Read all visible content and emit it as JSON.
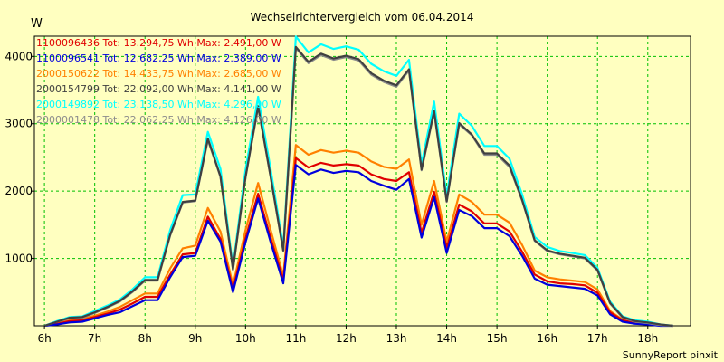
{
  "chart_data": {
    "type": "line",
    "title": "Wechselrichtervergleich vom 06.04.2014",
    "ylabel": "W",
    "footer": "SunnyReport pinxit",
    "xlim": [
      5.8,
      18.85
    ],
    "ylim": [
      0,
      4300
    ],
    "x_ticks": [
      6,
      7,
      8,
      9,
      10,
      11,
      12,
      13,
      14,
      15,
      16,
      17,
      18
    ],
    "x_tick_labels": [
      "6h",
      "7h",
      "8h",
      "9h",
      "10h",
      "11h",
      "12h",
      "13h",
      "14h",
      "15h",
      "16h",
      "17h",
      "18h"
    ],
    "y_ticks": [
      1000,
      2000,
      3000,
      4000
    ],
    "y_tick_labels": [
      "1000",
      "2000",
      "3000",
      "4000"
    ],
    "grid": true,
    "legend_position": "top-left",
    "x": [
      6.0,
      6.25,
      6.5,
      6.75,
      7.0,
      7.25,
      7.5,
      7.75,
      8.0,
      8.25,
      8.5,
      8.75,
      9.0,
      9.25,
      9.5,
      9.75,
      10.0,
      10.25,
      10.5,
      10.75,
      11.0,
      11.25,
      11.5,
      11.75,
      12.0,
      12.25,
      12.5,
      12.75,
      13.0,
      13.25,
      13.5,
      13.75,
      14.0,
      14.25,
      14.5,
      14.75,
      15.0,
      15.25,
      15.5,
      15.75,
      16.0,
      16.25,
      16.5,
      16.75,
      17.0,
      17.25,
      17.5,
      17.75,
      18.0,
      18.25,
      18.5
    ],
    "series": [
      {
        "name": "1100096436",
        "color": "#e00000",
        "legend": "1100096436 Tot: 13.294,75 Wh Max: 2.491,00 W",
        "values": [
          0,
          30,
          70,
          80,
          130,
          180,
          240,
          330,
          430,
          430,
          760,
          1060,
          1080,
          1620,
          1290,
          540,
          1300,
          1960,
          1300,
          680,
          2491,
          2350,
          2420,
          2380,
          2400,
          2380,
          2250,
          2180,
          2150,
          2280,
          1380,
          1990,
          1150,
          1800,
          1700,
          1520,
          1520,
          1400,
          1100,
          760,
          660,
          630,
          620,
          600,
          490,
          200,
          80,
          40,
          30,
          10,
          0
        ]
      },
      {
        "name": "1100096541",
        "color": "#0000dd",
        "legend": "1100096541 Tot: 12.682,25 Wh Max: 2.389,00 W",
        "values": [
          0,
          20,
          50,
          60,
          110,
          160,
          200,
          290,
          380,
          380,
          720,
          1020,
          1040,
          1560,
          1250,
          500,
          1240,
          1890,
          1240,
          630,
          2389,
          2250,
          2320,
          2270,
          2300,
          2280,
          2150,
          2080,
          2020,
          2180,
          1310,
          1910,
          1080,
          1720,
          1630,
          1450,
          1450,
          1330,
          1040,
          700,
          610,
          590,
          570,
          550,
          450,
          170,
          60,
          30,
          20,
          0,
          0
        ]
      },
      {
        "name": "2000150622",
        "color": "#ff8000",
        "legend": "2000150622 Tot: 14.433,75 Wh Max: 2.685,00 W",
        "values": [
          0,
          40,
          80,
          100,
          150,
          210,
          280,
          380,
          480,
          480,
          850,
          1150,
          1190,
          1750,
          1400,
          600,
          1420,
          2120,
          1420,
          740,
          2685,
          2540,
          2610,
          2570,
          2600,
          2570,
          2440,
          2360,
          2330,
          2470,
          1500,
          2150,
          1250,
          1950,
          1840,
          1650,
          1650,
          1530,
          1200,
          820,
          720,
          690,
          670,
          650,
          540,
          220,
          90,
          50,
          40,
          10,
          0
        ]
      },
      {
        "name": "2000154799",
        "color": "#404040",
        "legend": "2000154799 Tot: 22.092,00 Wh Max: 4.141,00 W",
        "values": [
          0,
          60,
          120,
          130,
          200,
          280,
          370,
          510,
          680,
          680,
          1350,
          1840,
          1860,
          2780,
          2220,
          840,
          2210,
          3260,
          2210,
          1120,
          4141,
          3920,
          4040,
          3970,
          4010,
          3960,
          3750,
          3640,
          3570,
          3810,
          2320,
          3190,
          1850,
          3010,
          2840,
          2560,
          2560,
          2380,
          1870,
          1270,
          1120,
          1070,
          1040,
          1010,
          830,
          340,
          130,
          70,
          50,
          20,
          0
        ]
      },
      {
        "name": "2000149892",
        "color": "#00ffff",
        "legend": "2000149892 Tot: 23.138,50 Wh Max: 4.296,00 W",
        "values": [
          0,
          70,
          130,
          140,
          220,
          300,
          390,
          540,
          720,
          720,
          1420,
          1940,
          1950,
          2880,
          2330,
          880,
          2320,
          3400,
          2320,
          1170,
          4296,
          4060,
          4180,
          4110,
          4150,
          4100,
          3890,
          3780,
          3710,
          3950,
          2400,
          3330,
          1930,
          3150,
          2970,
          2670,
          2670,
          2480,
          1950,
          1320,
          1170,
          1110,
          1080,
          1050,
          860,
          360,
          140,
          80,
          60,
          20,
          0
        ]
      },
      {
        "name": "2000001478",
        "color": "#8c8c8c",
        "legend": "2000001478 Tot: 22.062,25 Wh Max: 4.126,00 W",
        "values": [
          0,
          60,
          110,
          120,
          190,
          270,
          360,
          500,
          670,
          670,
          1340,
          1830,
          1850,
          2760,
          2210,
          830,
          2200,
          3250,
          2200,
          1110,
          4126,
          3900,
          4020,
          3950,
          3990,
          3940,
          3730,
          3620,
          3550,
          3790,
          2310,
          3170,
          1840,
          2990,
          2830,
          2540,
          2540,
          2360,
          1860,
          1260,
          1110,
          1060,
          1030,
          1000,
          820,
          330,
          120,
          60,
          40,
          10,
          0
        ]
      }
    ]
  }
}
